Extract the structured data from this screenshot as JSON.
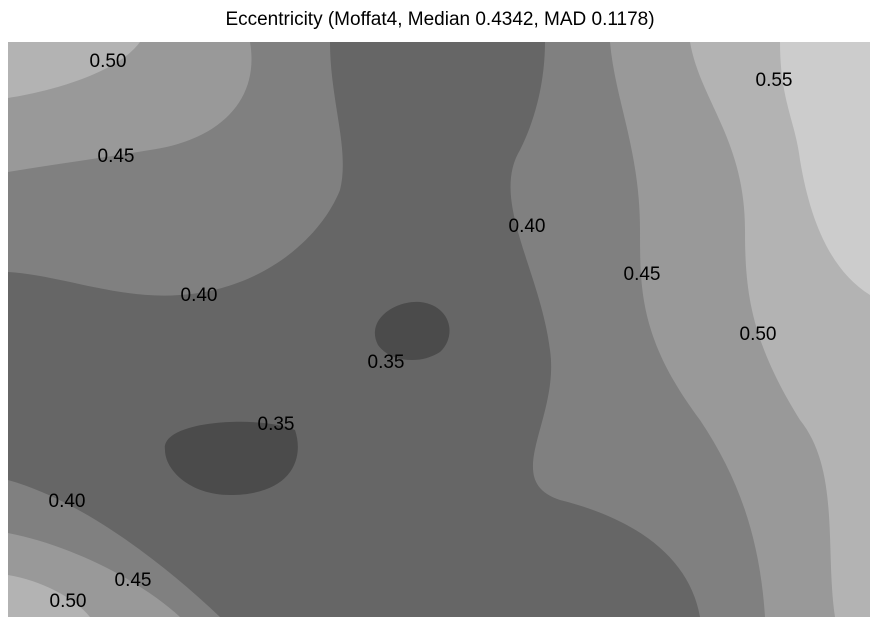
{
  "chart_data": {
    "type": "contour",
    "title": "Eccentricity (Moffat4, Median 0.4342, MAD 0.1178)",
    "levels": [
      0.35,
      0.4,
      0.45,
      0.5,
      0.55
    ],
    "colors": [
      "#4b4b4b",
      "#666666",
      "#808080",
      "#999999",
      "#b3b3b3",
      "#cccccc"
    ],
    "contour_labels": [
      {
        "value": 0.5,
        "label": "0.50"
      },
      {
        "value": 0.45,
        "label": "0.45"
      },
      {
        "value": 0.4,
        "label": "0.40"
      },
      {
        "value": 0.35,
        "label": "0.35"
      },
      {
        "value": 0.35,
        "label": "0.35"
      },
      {
        "value": 0.4,
        "label": "0.40"
      },
      {
        "value": 0.45,
        "label": "0.45"
      },
      {
        "value": 0.5,
        "label": "0.50"
      },
      {
        "value": 0.4,
        "label": "0.40"
      },
      {
        "value": 0.45,
        "label": "0.45"
      },
      {
        "value": 0.5,
        "label": "0.50"
      },
      {
        "value": 0.55,
        "label": "0.55"
      }
    ]
  }
}
